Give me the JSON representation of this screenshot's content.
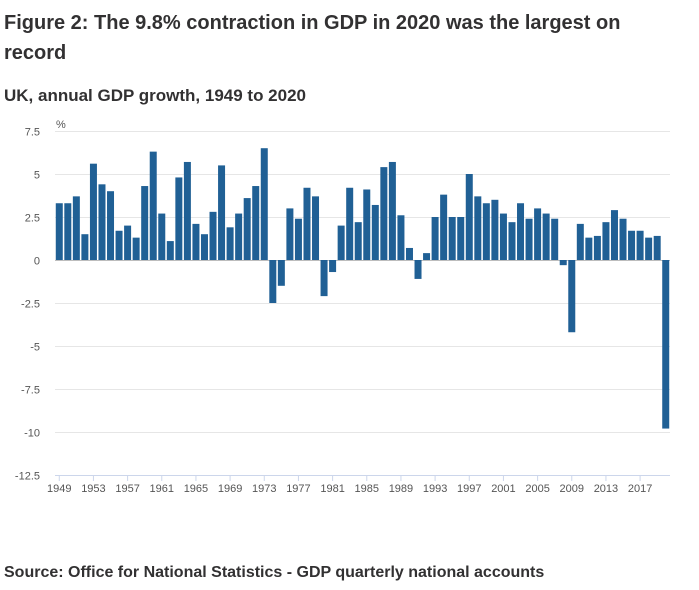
{
  "figure": {
    "title": "Figure 2: The 9.8% contraction in GDP in 2020 was the largest on record",
    "subtitle": "UK, annual GDP growth, 1949 to 2020",
    "source": "Source: Office for National Statistics - GDP quarterly national accounts"
  },
  "colors": {
    "bar": "#206095"
  },
  "chart_data": {
    "type": "bar",
    "title": "UK, annual GDP growth, 1949 to 2020",
    "xlabel": "",
    "ylabel": "%",
    "ylim": [
      -12.5,
      7.5
    ],
    "yticks": [
      7.5,
      5,
      2.5,
      0,
      -2.5,
      -5,
      -7.5,
      -10,
      -12.5
    ],
    "ytick_labels": [
      "7.5",
      "5",
      "2.5",
      "0",
      "-2.5",
      "-5",
      "-7.5",
      "-10",
      "-12.5"
    ],
    "xtick_labels": [
      "1949",
      "1953",
      "1957",
      "1961",
      "1965",
      "1969",
      "1973",
      "1977",
      "1981",
      "1985",
      "1989",
      "1993",
      "1997",
      "2001",
      "2005",
      "2009",
      "2013",
      "2017"
    ],
    "categories": [
      "1949",
      "1950",
      "1951",
      "1952",
      "1953",
      "1954",
      "1955",
      "1956",
      "1957",
      "1958",
      "1959",
      "1960",
      "1961",
      "1962",
      "1963",
      "1964",
      "1965",
      "1966",
      "1967",
      "1968",
      "1969",
      "1970",
      "1971",
      "1972",
      "1973",
      "1974",
      "1975",
      "1976",
      "1977",
      "1978",
      "1979",
      "1980",
      "1981",
      "1982",
      "1983",
      "1984",
      "1985",
      "1986",
      "1987",
      "1988",
      "1989",
      "1990",
      "1991",
      "1992",
      "1993",
      "1994",
      "1995",
      "1996",
      "1997",
      "1998",
      "1999",
      "2000",
      "2001",
      "2002",
      "2003",
      "2004",
      "2005",
      "2006",
      "2007",
      "2008",
      "2009",
      "2010",
      "2011",
      "2012",
      "2013",
      "2014",
      "2015",
      "2016",
      "2017",
      "2018",
      "2019",
      "2020"
    ],
    "values": [
      3.3,
      3.3,
      3.7,
      1.5,
      5.6,
      4.4,
      4.0,
      1.7,
      2.0,
      1.3,
      4.3,
      6.3,
      2.7,
      1.1,
      4.8,
      5.7,
      2.1,
      1.5,
      2.8,
      5.5,
      1.9,
      2.7,
      3.6,
      4.3,
      6.5,
      -2.5,
      -1.5,
      3.0,
      2.4,
      4.2,
      3.7,
      -2.1,
      -0.7,
      2.0,
      4.2,
      2.2,
      4.1,
      3.2,
      5.4,
      5.7,
      2.6,
      0.7,
      -1.1,
      0.4,
      2.5,
      3.8,
      2.5,
      2.5,
      5.0,
      3.7,
      3.3,
      3.5,
      2.7,
      2.2,
      3.3,
      2.4,
      3.0,
      2.7,
      2.4,
      -0.3,
      -4.2,
      2.1,
      1.3,
      1.4,
      2.2,
      2.9,
      2.4,
      1.7,
      1.7,
      1.3,
      1.4,
      -9.8
    ]
  }
}
